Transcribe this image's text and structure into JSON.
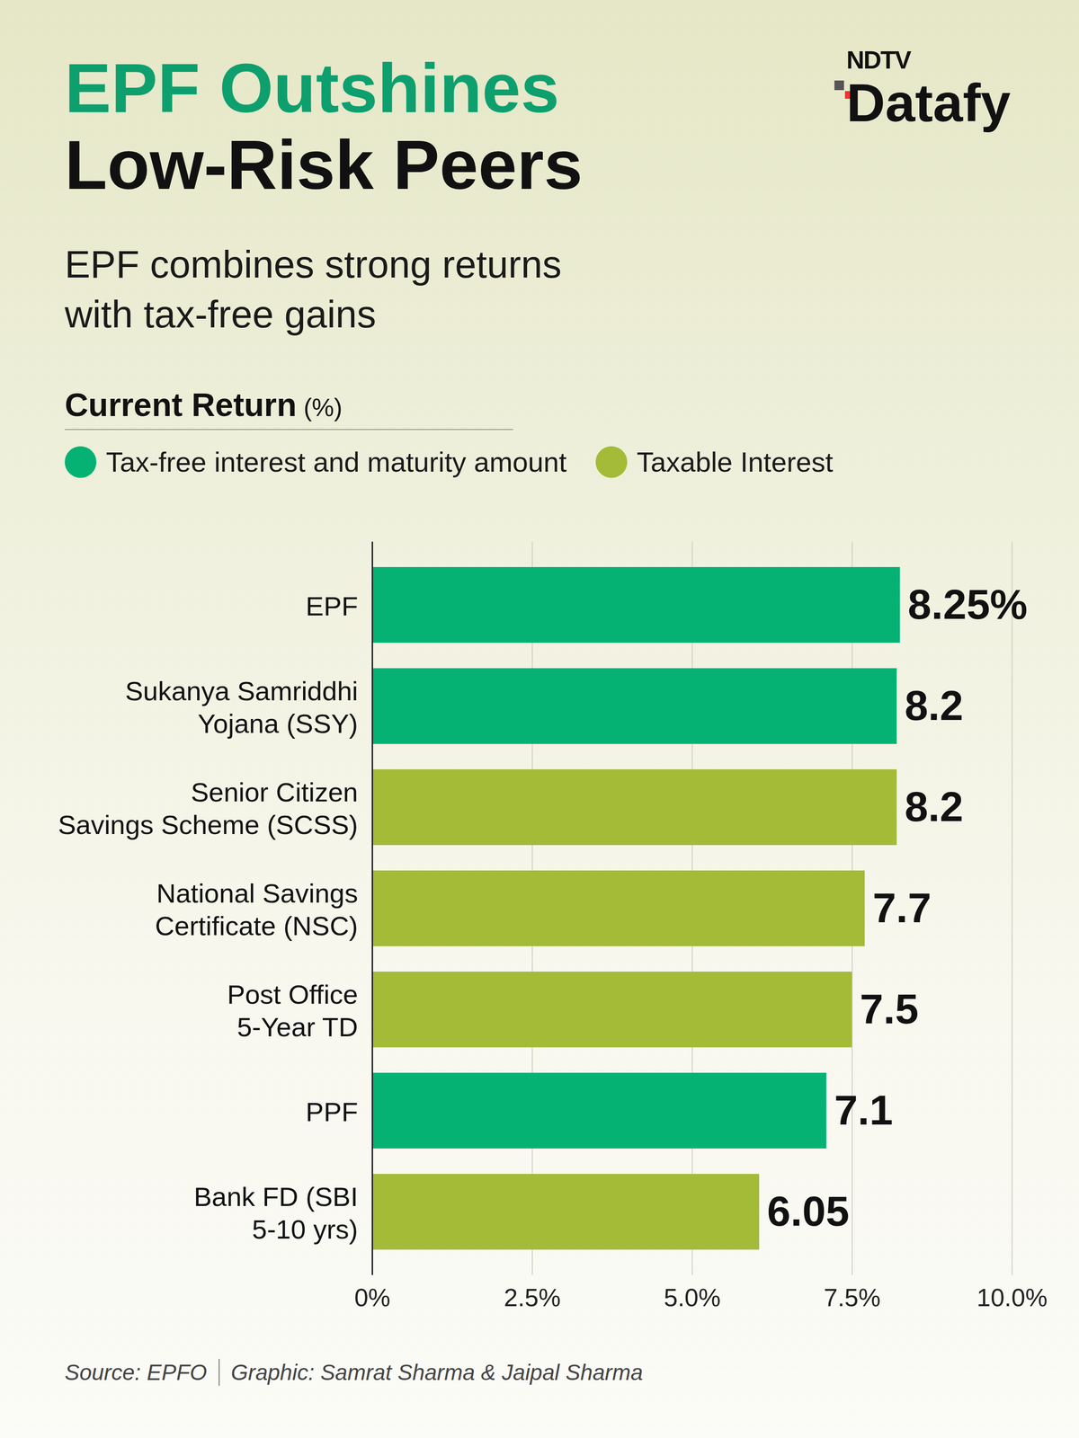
{
  "chart_data": {
    "type": "bar",
    "brand": [
      "NDTV",
      "Datafy"
    ],
    "title": [
      "EPF Outshines",
      "Low-Risk Peers"
    ],
    "subtitle": "EPF combines strong returns with tax-free gains",
    "x_label": "Current Return (%)",
    "orientation": "horizontal",
    "categories": [
      "EPF",
      "Sukanya Samriddhi Yojana (SSY)",
      "Senior Citizen Savings Scheme (SCSS)",
      "National Savings Certificate (NSC)",
      "Post Office 5-Year TD",
      "PPF",
      "Bank FD (SBI 5-10 yrs)"
    ],
    "series": [
      {
        "name": "Tax-free interest and maturity amount",
        "color": "#05b274",
        "values": [
          8.25,
          8.2,
          null,
          null,
          null,
          7.1,
          null
        ],
        "value_labels": [
          "8.25%",
          "8.2",
          null,
          null,
          null,
          "7.1",
          null
        ]
      },
      {
        "name": "Taxable Interest",
        "color": "#a4bb38",
        "values": [
          null,
          null,
          8.2,
          7.7,
          7.5,
          null,
          6.05
        ],
        "value_labels": [
          null,
          null,
          "8.2",
          "7.7",
          "7.5",
          null,
          "6.05"
        ]
      }
    ],
    "xlim": [
      0,
      10
    ],
    "xticks": [
      {
        "value": 0,
        "label": "0%"
      },
      {
        "value": 2.5,
        "label": "2.5%"
      },
      {
        "value": 5,
        "label": "5.0%"
      },
      {
        "value": 7.5,
        "label": "7.5%"
      },
      {
        "value": 10,
        "label": "10.0%"
      }
    ],
    "grid": true,
    "legend": "top",
    "data_labels": true,
    "source": "Source: EPFO",
    "credit": "Graphic: Samrat Sharma & Jaipal Sharma"
  }
}
